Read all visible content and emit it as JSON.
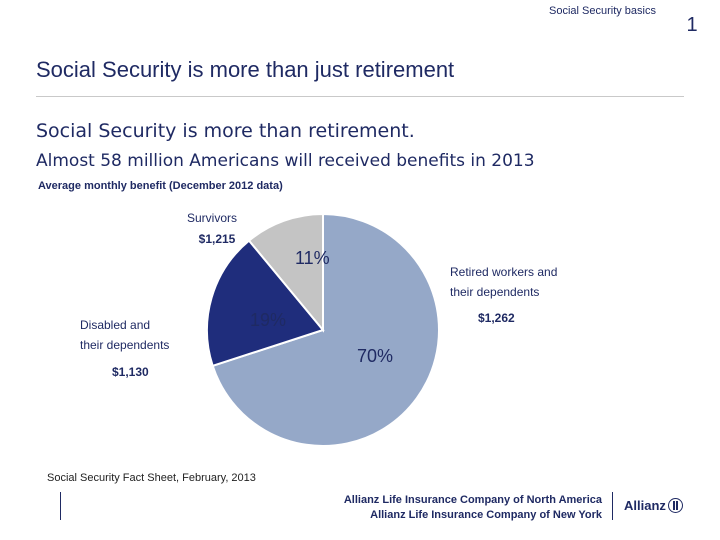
{
  "header": {
    "section": "Social Security basics",
    "page_number": "1"
  },
  "slide": {
    "title": "Social Security is more than just retirement",
    "headline": "Social Security is more than retirement.",
    "subheadline": "Almost 58 million Americans will received benefits in 2013",
    "chart_note": "Average monthly benefit (December 2012 data)"
  },
  "chart_data": {
    "type": "pie",
    "title": "Average monthly benefit (December 2012 data)",
    "slices": [
      {
        "name": "Retired workers and their dependents",
        "label_lines": [
          "Retired workers and",
          "their dependents"
        ],
        "percent": 70,
        "percent_label": "70%",
        "benefit": "$1,262",
        "color": "#95a8c8"
      },
      {
        "name": "Disabled and their dependents",
        "label_lines": [
          "Disabled and",
          "their dependents"
        ],
        "percent": 19,
        "percent_label": "19%",
        "benefit": "$1,130",
        "color": "#1f2d7c"
      },
      {
        "name": "Survivors",
        "label_lines": [
          "Survivors"
        ],
        "percent": 11,
        "percent_label": "11%",
        "benefit": "$1,215",
        "color": "#c4c4c4"
      }
    ]
  },
  "footer": {
    "source": "Social Security Fact Sheet, February, 2013",
    "company_line1": "Allianz Life Insurance Company of North America",
    "company_line2": "Allianz Life Insurance Company of New York",
    "logo_text": "Allianz"
  }
}
